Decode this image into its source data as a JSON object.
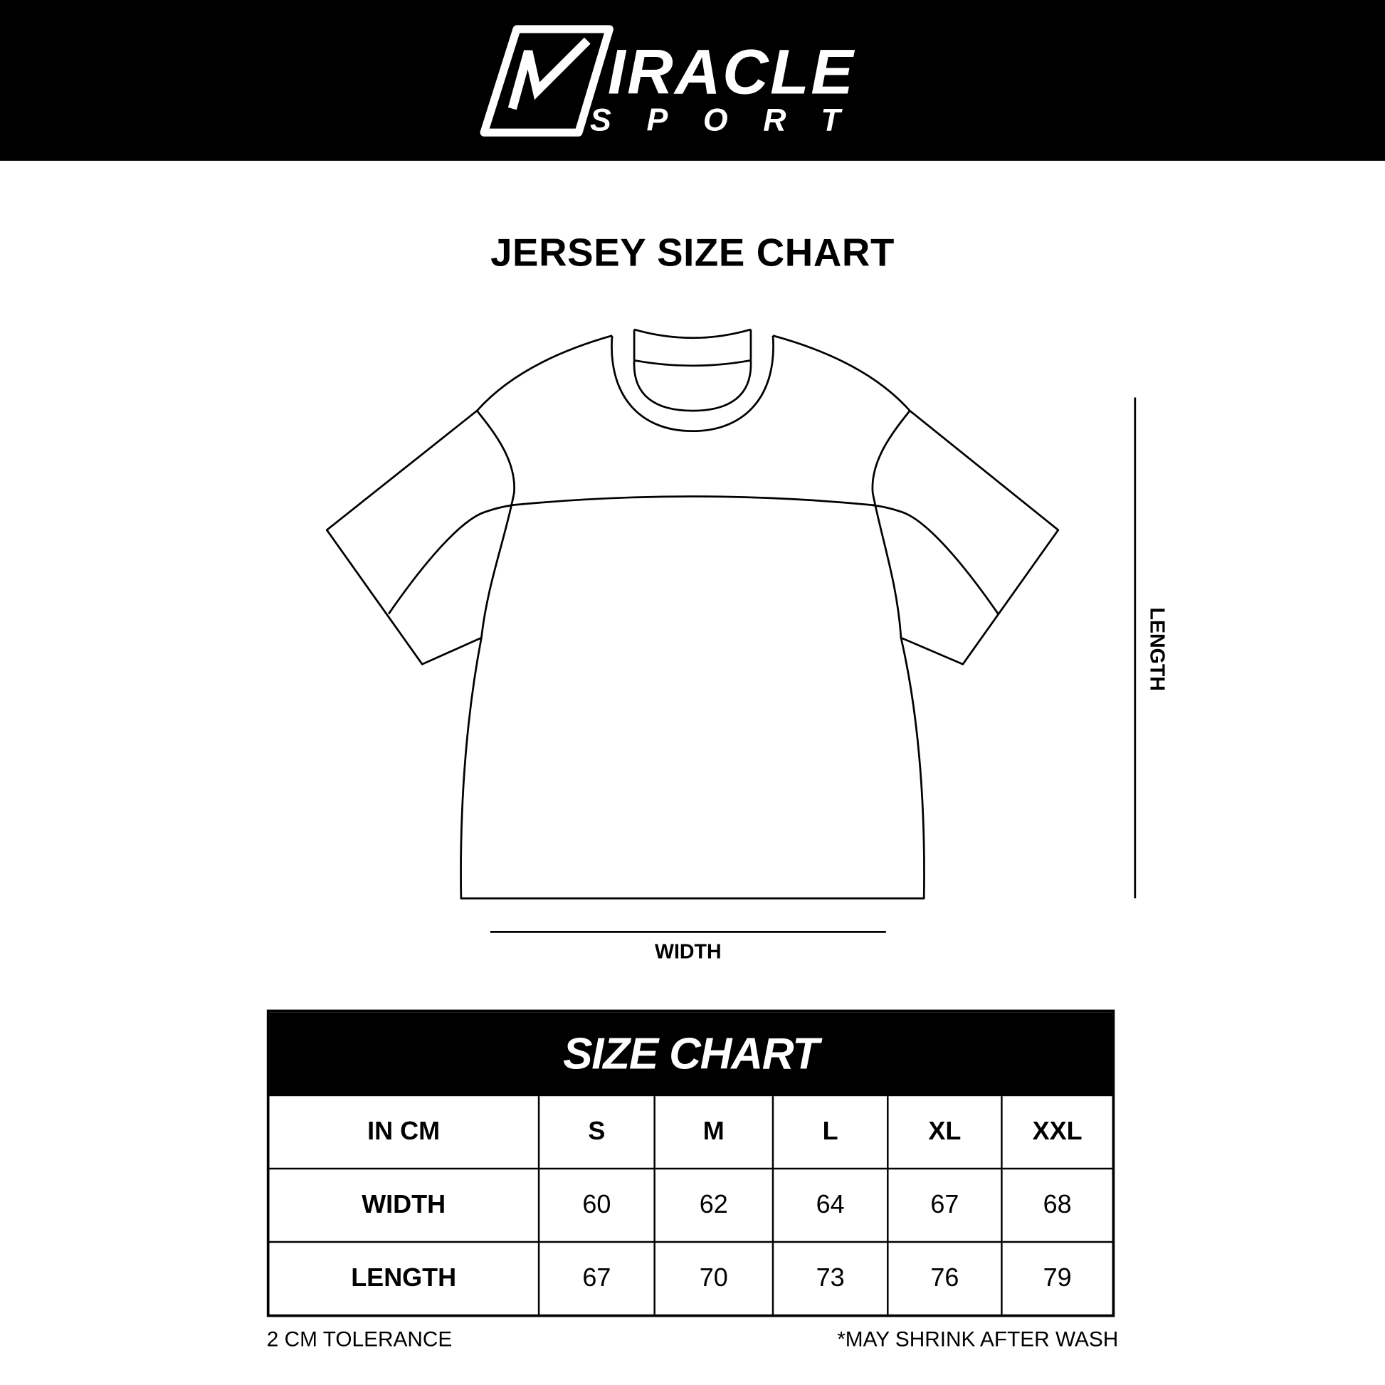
{
  "brand": {
    "logo_text": "MIRACLE SPORT",
    "logo_line1": "IRACLE",
    "logo_line2": "SPORT"
  },
  "page_title": "JERSEY SIZE CHART",
  "diagram": {
    "width_label": "WIDTH",
    "length_label": "LENGTH"
  },
  "size_table": {
    "title": "SIZE CHART",
    "header": [
      "IN CM",
      "S",
      "M",
      "L",
      "XL",
      "XXL"
    ],
    "rows": [
      [
        "WIDTH",
        "60",
        "62",
        "64",
        "67",
        "68"
      ],
      [
        "LENGTH",
        "67",
        "70",
        "73",
        "76",
        "79"
      ]
    ]
  },
  "notes": {
    "left": "2 CM TOLERANCE",
    "right": "*MAY SHRINK AFTER WASH"
  },
  "colors": {
    "background": "#ffffff",
    "ink": "#000000"
  }
}
